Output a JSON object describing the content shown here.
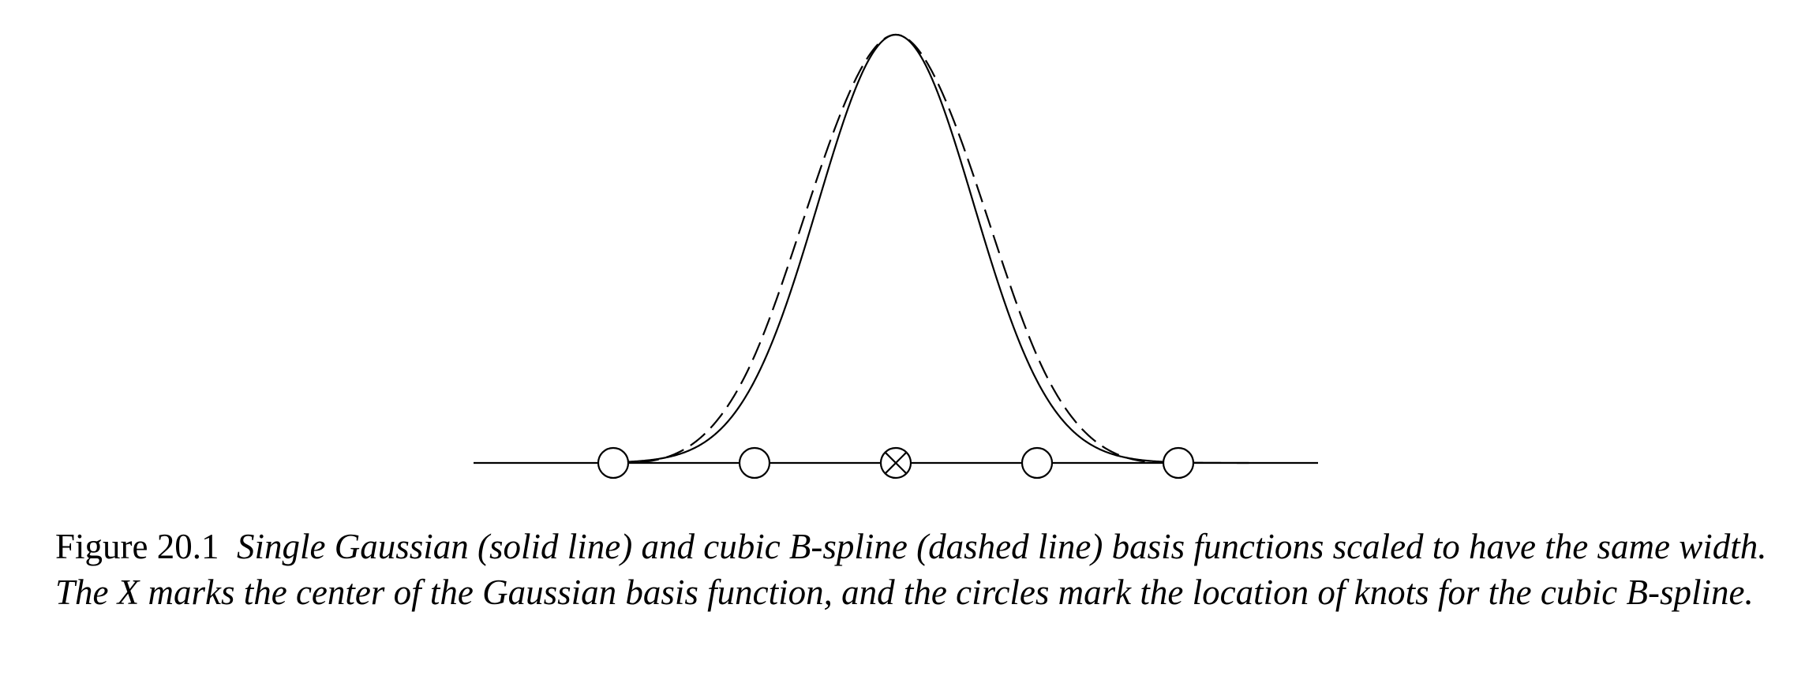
{
  "figure": {
    "label": "Figure 20.1",
    "caption": "Single Gaussian (solid line) and cubic B-spline (dashed line) basis functions scaled to have the same width. The X marks the center of the Gaussian basis function, and the circles mark the location of knots for the cubic B-spline."
  },
  "chart_data": {
    "type": "line",
    "title": "",
    "xlabel": "",
    "ylabel": "",
    "xlim": [
      -2.5,
      3.0
    ],
    "ylim": [
      0,
      1
    ],
    "grid": false,
    "legend": "none",
    "x_axis_line": true,
    "series": [
      {
        "style": "solid",
        "color": "#000000",
        "kind": "gaussian",
        "mean": 0,
        "sigma": 0.55,
        "peak": 1.0
      },
      {
        "style": "dashed",
        "color": "#000000",
        "kind": "cubic-bspline",
        "knot_spacing": 1,
        "peak": 1.0
      }
    ],
    "knots": [
      -2,
      -1,
      0,
      1,
      2
    ],
    "gaussian_center": 0,
    "marker_colors": {
      "stroke": "#000000",
      "fill": "#ffffff"
    }
  }
}
